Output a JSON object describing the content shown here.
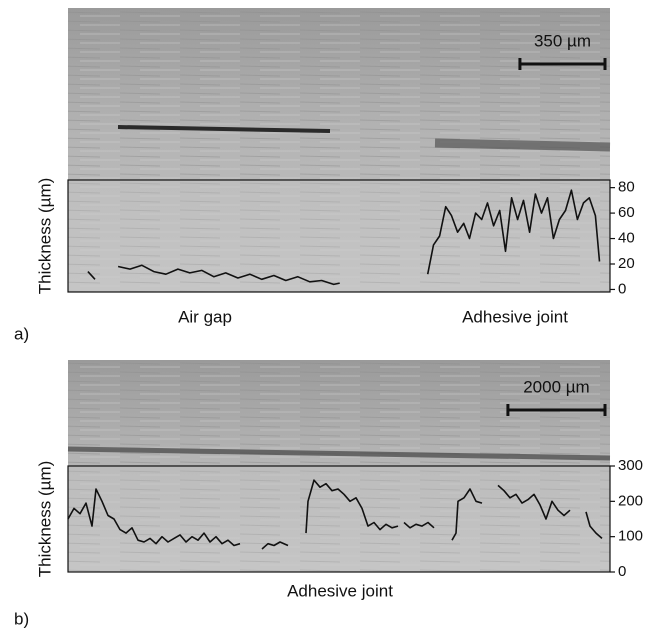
{
  "chart_data": [
    {
      "type": "line",
      "panel_label": "a)",
      "y_label": "Thickness (µm)",
      "annotations": [
        "Air gap",
        "Adhesive joint"
      ],
      "scale_bar": {
        "value": 350,
        "label": "350 µm"
      },
      "xlim": [
        0,
        2230
      ],
      "ylim": [
        -2,
        86
      ],
      "yticks": [
        0,
        20,
        40,
        60,
        80
      ],
      "color": "#111",
      "x": [
        82,
        111,
        160,
        206,
        255,
        304,
        353,
        403,
        452,
        501,
        551,
        600,
        649,
        699,
        748,
        797,
        847,
        896,
        945,
        995,
        1044,
        1093,
        1118,
        1300,
        1480,
        1504,
        1529,
        1554,
        1578,
        1603,
        1628,
        1652,
        1677,
        1702,
        1726,
        1751,
        1776,
        1800,
        1825,
        1850,
        1874,
        1899,
        1923,
        1948,
        1973,
        1997,
        2022,
        2047,
        2071,
        2096,
        2121,
        2145,
        2170,
        2187
      ],
      "values": [
        14,
        8,
        null,
        18,
        16,
        19,
        14,
        12,
        16,
        13,
        15,
        10,
        13,
        9,
        12,
        8,
        11,
        7,
        10,
        6,
        7,
        4,
        5,
        null,
        12,
        35,
        42,
        65,
        58,
        45,
        52,
        40,
        60,
        55,
        68,
        50,
        62,
        30,
        72,
        55,
        70,
        45,
        75,
        60,
        72,
        40,
        55,
        62,
        78,
        55,
        68,
        72,
        58,
        22
      ]
    },
    {
      "type": "line",
      "panel_label": "b)",
      "y_label": "Thickness (µm)",
      "annotations": [
        "Adhesive joint"
      ],
      "scale_bar": {
        "value": 2000,
        "label": "2000 µm"
      },
      "xlim": [
        0,
        11165
      ],
      "ylim": [
        0,
        300
      ],
      "yticks": [
        0,
        100,
        200,
        300
      ],
      "color": "#111",
      "x": [
        0,
        124,
        247,
        371,
        494,
        577,
        700,
        824,
        948,
        1071,
        1195,
        1318,
        1442,
        1566,
        1689,
        1813,
        1936,
        2060,
        2184,
        2307,
        2431,
        2554,
        2678,
        2802,
        2925,
        3049,
        3172,
        3296,
        3420,
        3543,
        3749,
        3996,
        4120,
        4244,
        4367,
        4532,
        4717,
        4903,
        4944,
        5068,
        5191,
        5315,
        5438,
        5562,
        5686,
        5809,
        5933,
        6056,
        6180,
        6304,
        6427,
        6551,
        6674,
        6798,
        6860,
        6922,
        7045,
        7169,
        7292,
        7416,
        7540,
        7725,
        7910,
        7993,
        8034,
        8158,
        8281,
        8405,
        8528,
        8693,
        8858,
        8982,
        9105,
        9229,
        9352,
        9476,
        9600,
        9723,
        9847,
        9970,
        10094,
        10218,
        10341,
        10506,
        10671,
        10753,
        10877,
        11000
      ],
      "values": [
        150,
        180,
        165,
        195,
        130,
        235,
        200,
        160,
        150,
        120,
        110,
        125,
        90,
        85,
        95,
        80,
        100,
        85,
        95,
        105,
        85,
        100,
        90,
        110,
        85,
        100,
        80,
        90,
        75,
        80,
        null,
        65,
        80,
        75,
        85,
        75,
        null,
        110,
        200,
        260,
        240,
        250,
        230,
        235,
        220,
        200,
        210,
        180,
        130,
        140,
        120,
        135,
        125,
        130,
        null,
        140,
        125,
        135,
        130,
        140,
        125,
        null,
        90,
        110,
        200,
        210,
        235,
        200,
        195,
        null,
        245,
        230,
        210,
        220,
        195,
        205,
        220,
        190,
        150,
        200,
        175,
        160,
        175,
        null,
        170,
        130,
        110,
        95
      ]
    }
  ]
}
